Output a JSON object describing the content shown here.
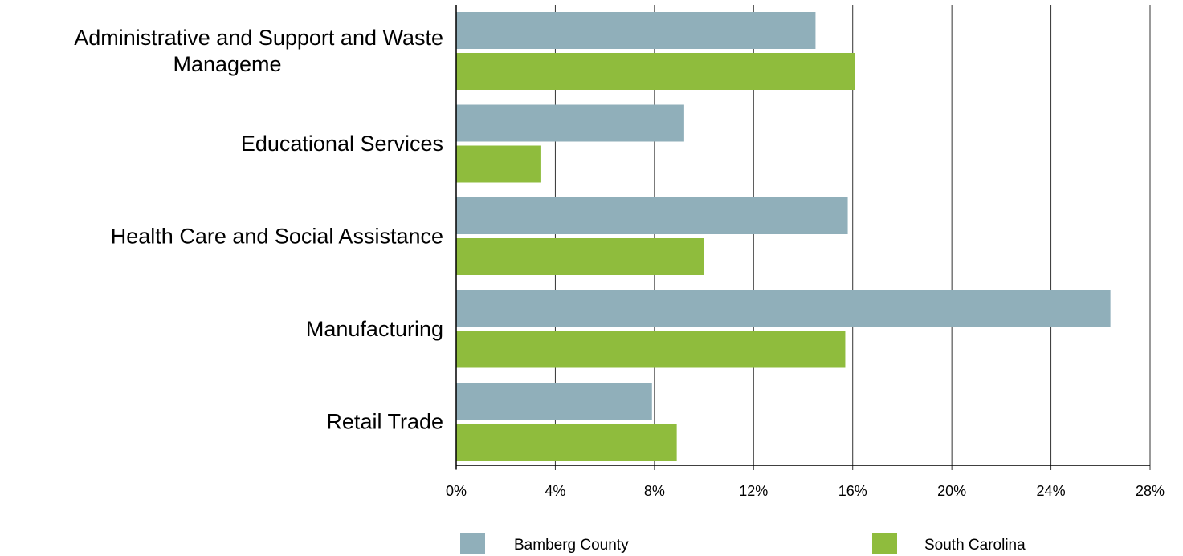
{
  "chart_data": {
    "type": "bar",
    "orientation": "horizontal",
    "categories": [
      [
        "Administrative and Support and Waste",
        "Manageme"
      ],
      [
        "Educational Services"
      ],
      [
        "Health Care and Social Assistance"
      ],
      [
        "Manufacturing"
      ],
      [
        "Retail Trade"
      ]
    ],
    "series": [
      {
        "name": "Bamberg County",
        "color": "#90AFBA",
        "values": [
          14.5,
          9.2,
          15.8,
          26.4,
          7.9
        ]
      },
      {
        "name": "South Carolina",
        "color": "#8FBC3D",
        "values": [
          16.1,
          3.4,
          10.0,
          15.7,
          8.9
        ]
      }
    ],
    "x_ticks": [
      "0%",
      "4%",
      "8%",
      "12%",
      "16%",
      "20%",
      "24%",
      "28%"
    ],
    "xlim": [
      0,
      28
    ],
    "grid": true,
    "legend_position": "bottom"
  }
}
